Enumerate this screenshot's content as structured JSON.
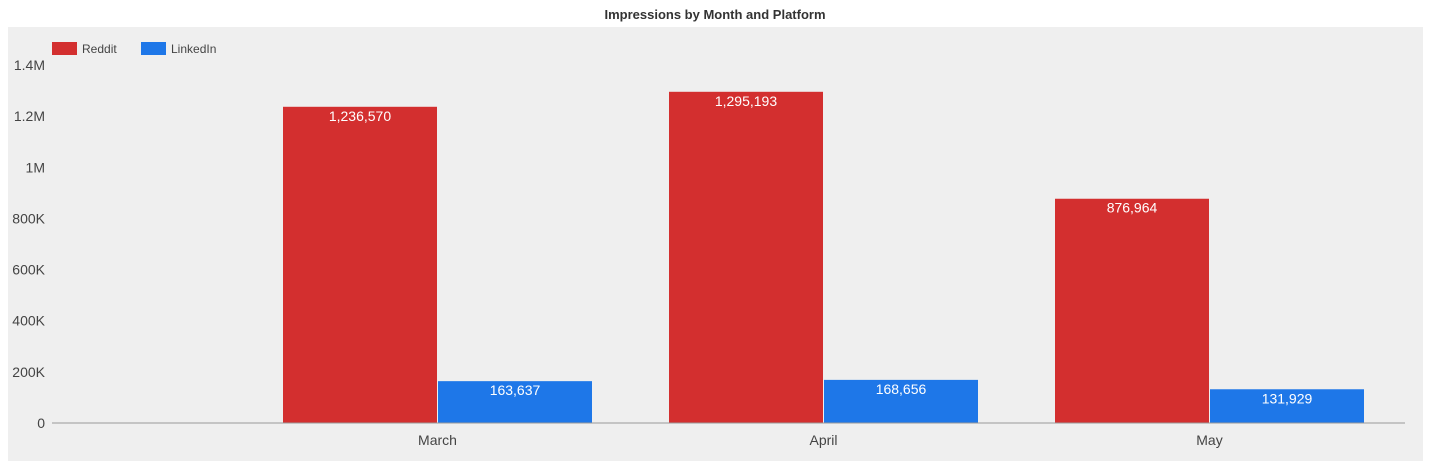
{
  "chart_data": {
    "type": "bar",
    "title": "Impressions by Month and Platform",
    "xlabel": "",
    "ylabel": "",
    "categories": [
      "March",
      "April",
      "May"
    ],
    "series": [
      {
        "name": "Reddit",
        "color": "#d32f2f",
        "values": [
          1236570,
          1295193,
          876964
        ],
        "labels": [
          "1,236,570",
          "1,295,193",
          "876,964"
        ]
      },
      {
        "name": "LinkedIn",
        "color": "#1e77e8",
        "values": [
          163637,
          168656,
          131929
        ],
        "labels": [
          "163,637",
          "168,656",
          "131,929"
        ]
      }
    ],
    "ylim": [
      0,
      1400000
    ],
    "yticks": [
      0,
      200000,
      400000,
      600000,
      800000,
      1000000,
      1200000,
      1400000
    ],
    "ytick_labels": [
      "0",
      "200K",
      "400K",
      "600K",
      "800K",
      "1M",
      "1.2M",
      "1.4M"
    ],
    "legend": "top-left",
    "grid": false,
    "plot_background": "#efefef"
  }
}
